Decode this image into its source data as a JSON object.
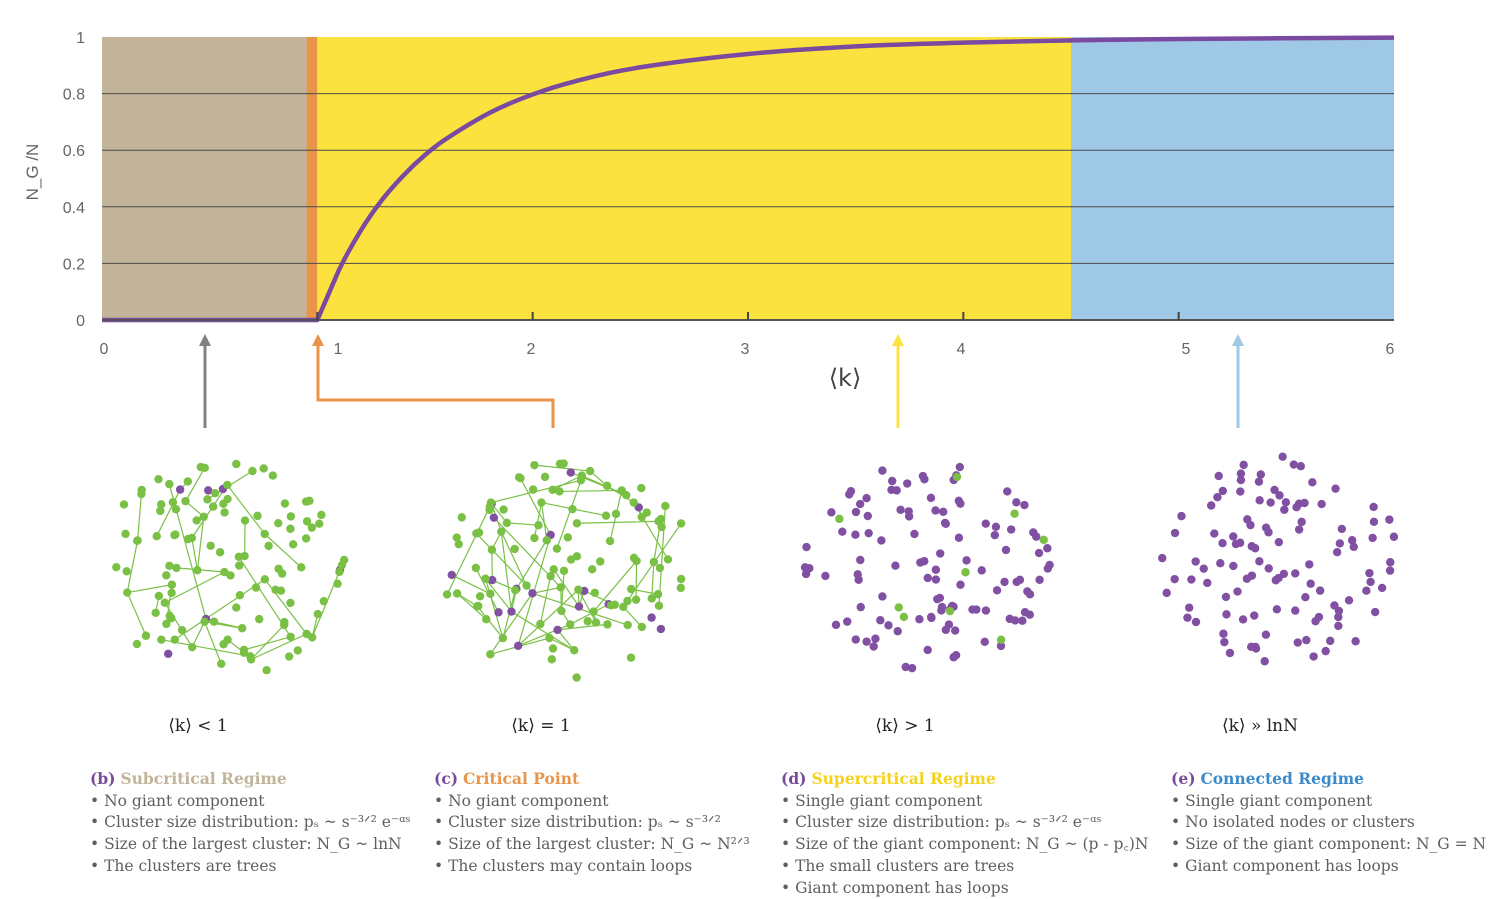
{
  "chart_data": {
    "type": "area",
    "ylabel": "N_G /N",
    "xlabel": "⟨k⟩",
    "xlim": [
      0,
      6
    ],
    "ylim": [
      0,
      1
    ],
    "x_ticks": [
      "0",
      "1",
      "2",
      "3",
      "4",
      "5",
      "6"
    ],
    "y_ticks": [
      "0",
      "0.2",
      "0.4",
      "0.6",
      "0.8",
      "1"
    ],
    "grid": "horizontal",
    "regions": [
      {
        "name": "subcritical",
        "x_range": [
          0,
          0.95
        ],
        "color": "#c2b49a"
      },
      {
        "name": "critical",
        "x_range": [
          0.95,
          1.0
        ],
        "color": "#e8954a"
      },
      {
        "name": "supercritical",
        "x_range": [
          1.0,
          4.5
        ],
        "color": "#fce23f"
      },
      {
        "name": "connected",
        "x_range": [
          4.5,
          6.0
        ],
        "color": "#9fc7e6"
      }
    ],
    "series": [
      {
        "color": "#7a49a0",
        "x": [
          0,
          1.0,
          1.1,
          1.2,
          1.3,
          1.4,
          1.5,
          1.6,
          1.8,
          2.0,
          2.2,
          2.5,
          3.0,
          3.5,
          4.0,
          4.5,
          5.0,
          6.0
        ],
        "values": [
          0,
          0,
          0.176,
          0.314,
          0.424,
          0.511,
          0.583,
          0.641,
          0.732,
          0.797,
          0.844,
          0.893,
          0.94,
          0.967,
          0.98,
          0.988,
          0.993,
          0.998
        ]
      }
    ]
  },
  "arrows": [
    {
      "regime": "b",
      "color": "#818181"
    },
    {
      "regime": "c",
      "color": "#e8954a"
    },
    {
      "regime": "d",
      "color": "#fce23f"
    },
    {
      "regime": "e",
      "color": "#9fc7e6"
    }
  ],
  "colors": {
    "node": "#7ac045",
    "giant": "#8150a3",
    "edge": "#7ac045"
  },
  "panels": [
    {
      "condition": "⟨k⟩ < 1",
      "letter": "(b)",
      "title": "Subcritical Regime",
      "title_color": "#c2b49a",
      "bullets": [
        "No giant component",
        "Cluster size distribution: pₛ ~ s⁻³ᐟ² e⁻ᵅˢ",
        "Size of the largest cluster: N_G ~ lnN",
        "The clusters are trees"
      ]
    },
    {
      "condition": "⟨k⟩ = 1",
      "letter": "(c)",
      "title": "Critical Point",
      "title_color": "#e8954a",
      "bullets": [
        "No giant component",
        "Cluster size distribution: pₛ ~ s⁻³ᐟ²",
        "Size of the largest cluster: N_G ~ N²ᐟ³",
        "The clusters may contain loops"
      ]
    },
    {
      "condition": "⟨k⟩ > 1",
      "letter": "(d)",
      "title": "Supercritical Regime",
      "title_color": "#f5d21c",
      "bullets": [
        "Single giant component",
        "Cluster size distribution: pₛ ~ s⁻³ᐟ² e⁻ᵅˢ",
        "Size of the giant component: N_G ~ (p - p꜀)N",
        "The small clusters are trees",
        "Giant component has loops"
      ]
    },
    {
      "condition": "⟨k⟩ » lnN",
      "letter": "(e)",
      "title": "Connected Regime",
      "title_color": "#3d8ac9",
      "bullets": [
        "Single giant component",
        "No isolated nodes or clusters",
        "Size of the giant component: N_G = N",
        "Giant component has loops"
      ]
    }
  ]
}
